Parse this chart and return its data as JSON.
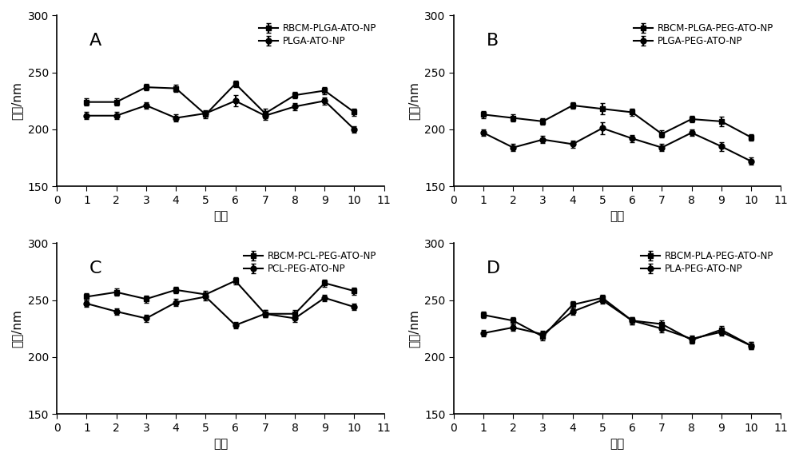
{
  "x": [
    1,
    2,
    3,
    4,
    5,
    6,
    7,
    8,
    9,
    10
  ],
  "panel_A": {
    "label": "A",
    "series1_label": "RBCM-PLGA-ATO-NP",
    "series2_label": "PLGA-ATO-NP",
    "series1_y": [
      224,
      224,
      237,
      236,
      213,
      240,
      214,
      230,
      234,
      215
    ],
    "series2_y": [
      212,
      212,
      221,
      210,
      214,
      225,
      212,
      220,
      225,
      200
    ],
    "series1_err": [
      3,
      3,
      3,
      3,
      3,
      3,
      4,
      3,
      3,
      3
    ],
    "series2_err": [
      3,
      3,
      3,
      3,
      3,
      5,
      4,
      3,
      3,
      3
    ]
  },
  "panel_B": {
    "label": "B",
    "series1_label": "RBCM-PLGA-PEG-ATO-NP",
    "series2_label": "PLGA-PEG-ATO-NP",
    "series1_y": [
      213,
      210,
      207,
      221,
      218,
      215,
      196,
      209,
      207,
      193
    ],
    "series2_y": [
      197,
      184,
      191,
      187,
      201,
      192,
      184,
      197,
      185,
      172
    ],
    "series1_err": [
      3,
      3,
      3,
      3,
      5,
      3,
      3,
      3,
      4,
      3
    ],
    "series2_err": [
      3,
      3,
      3,
      3,
      5,
      3,
      3,
      3,
      4,
      3
    ]
  },
  "panel_C": {
    "label": "C",
    "series1_label": "RBCM-PCL-PEG-ATO-NP",
    "series2_label": "PCL-PEG-ATO-NP",
    "series1_y": [
      253,
      257,
      251,
      259,
      255,
      267,
      238,
      238,
      265,
      258
    ],
    "series2_y": [
      247,
      240,
      234,
      248,
      253,
      228,
      238,
      234,
      252,
      244
    ],
    "series1_err": [
      3,
      3,
      3,
      3,
      3,
      3,
      3,
      3,
      3,
      3
    ],
    "series2_err": [
      3,
      3,
      3,
      3,
      3,
      3,
      3,
      3,
      3,
      3
    ]
  },
  "panel_D": {
    "label": "D",
    "series1_label": "RBCM-PLA-PEG-ATO-NP",
    "series2_label": "PLA-PEG-ATO-NP",
    "series1_y": [
      237,
      232,
      218,
      246,
      252,
      232,
      229,
      215,
      224,
      210
    ],
    "series2_y": [
      221,
      226,
      220,
      240,
      250,
      232,
      225,
      216,
      222,
      210
    ],
    "series1_err": [
      3,
      3,
      3,
      3,
      3,
      3,
      3,
      3,
      3,
      3
    ],
    "series2_err": [
      3,
      3,
      3,
      3,
      3,
      3,
      3,
      3,
      3,
      3
    ]
  },
  "ylim": [
    150,
    300
  ],
  "xlim": [
    0,
    11
  ],
  "xticks": [
    0,
    1,
    2,
    3,
    4,
    5,
    6,
    7,
    8,
    9,
    10,
    11
  ],
  "yticks": [
    150,
    200,
    250,
    300
  ],
  "xlabel": "批次",
  "ylabel": "粒径/nm",
  "line_color": "#000000",
  "marker1": "s",
  "marker2": "o",
  "markersize": 5,
  "linewidth": 1.5,
  "bg_color": "#ffffff",
  "fontsize_label": 11,
  "fontsize_tick": 10,
  "fontsize_legend": 8.5,
  "fontsize_panel_label": 16
}
